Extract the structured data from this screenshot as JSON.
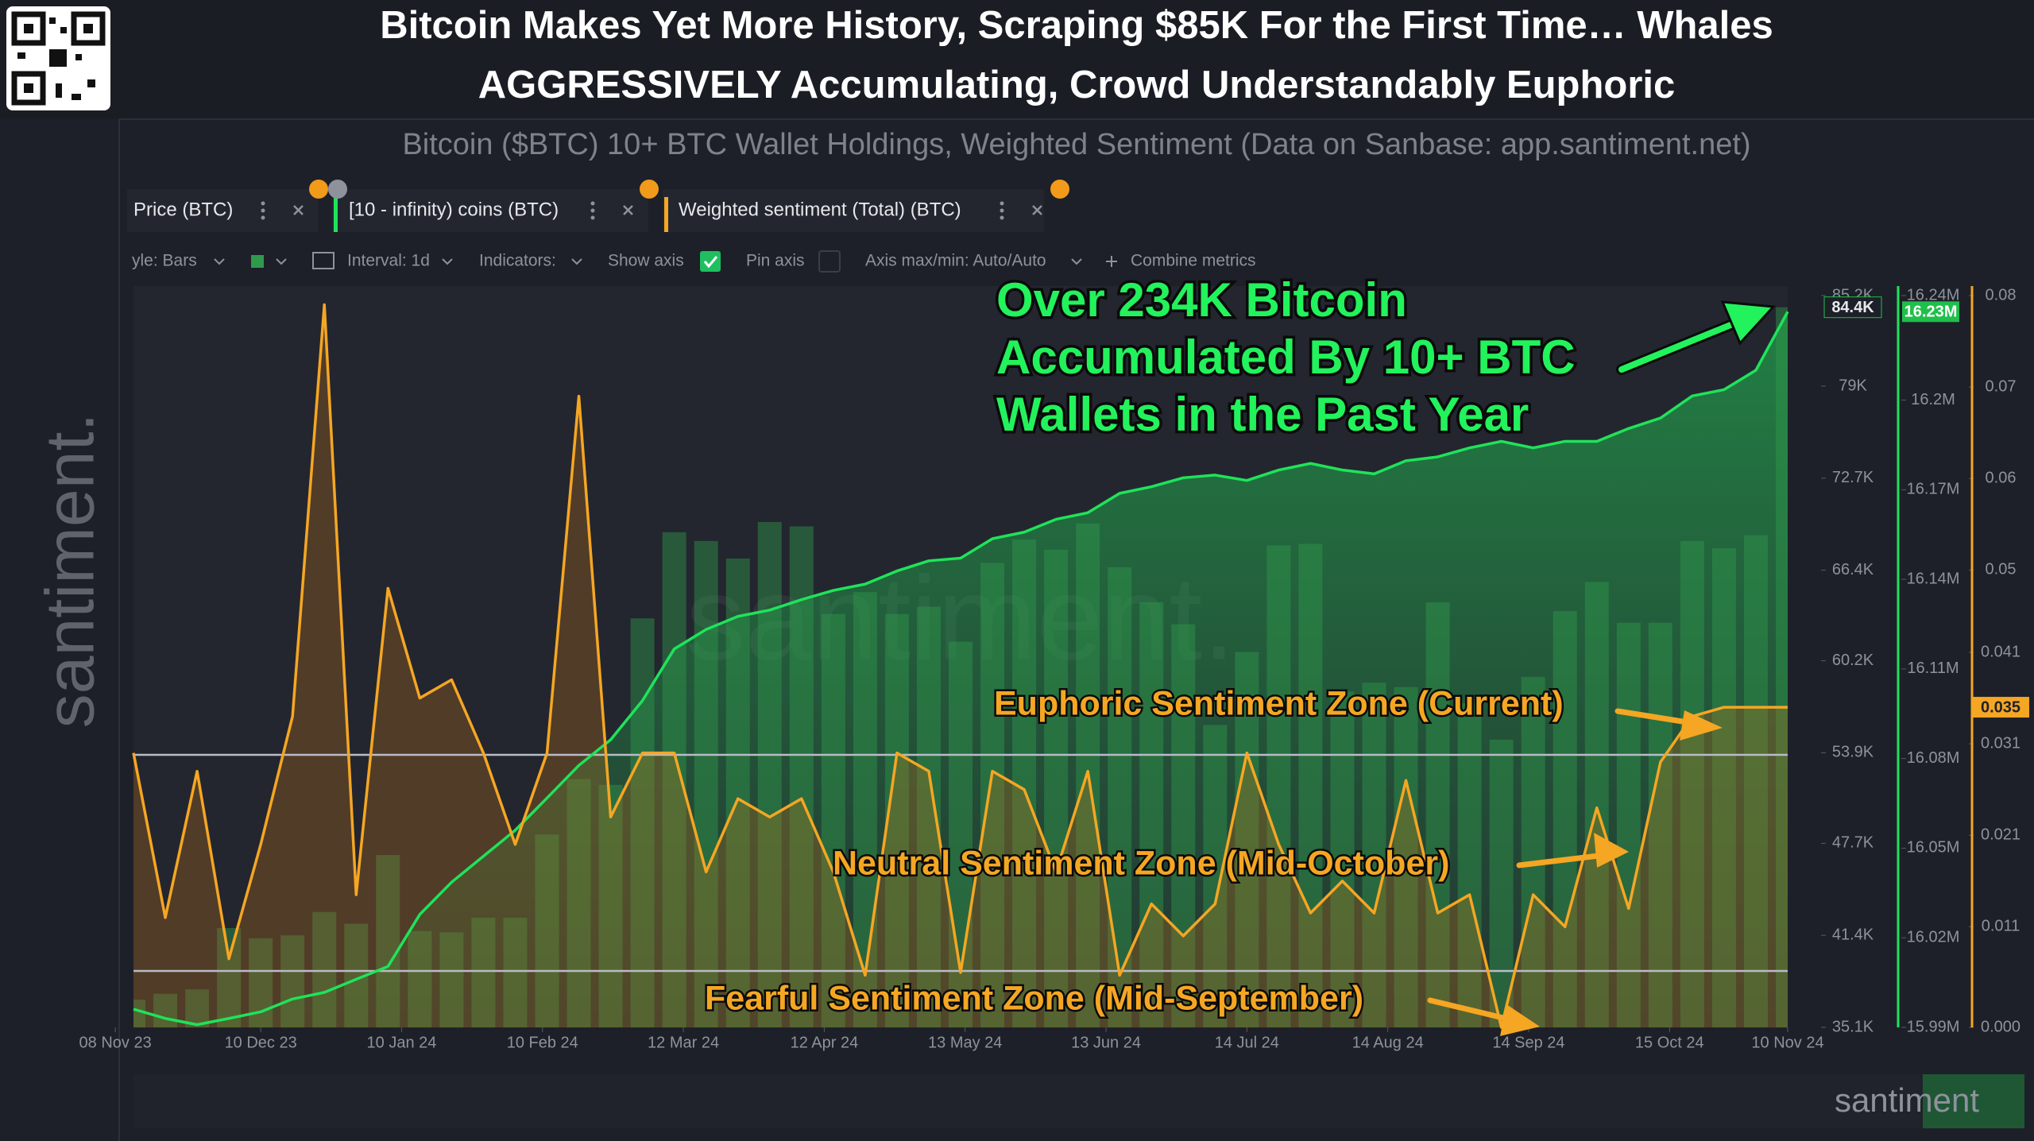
{
  "header": {
    "title_lines": [
      "Bitcoin Makes Yet More History, Scraping $85K For the First Time… Whales",
      "AGGRESSIVELY Accumulating, Crowd Understandably Euphoric"
    ]
  },
  "branding": {
    "sidebar": "santiment.",
    "watermark": "santiment.",
    "navigator": "santiment"
  },
  "toolbar": {
    "items": [
      "yle: Bars",
      "Interval: 1d",
      "Indicators:",
      "Show axis",
      "Pin axis",
      "Axis max/min: Auto/Auto",
      "Combine metrics"
    ]
  },
  "chart_data": {
    "type": "combo",
    "subtitle": "Bitcoin ($BTC) 10+ BTC Wallet Holdings, Weighted Sentiment (Data on Sanbase: app.santiment.net)",
    "x": [
      "2023-11-12",
      "2023-11-19",
      "2023-11-26",
      "2023-12-03",
      "2023-12-10",
      "2023-12-17",
      "2023-12-24",
      "2023-12-31",
      "2024-01-07",
      "2024-01-14",
      "2024-01-21",
      "2024-01-28",
      "2024-02-04",
      "2024-02-11",
      "2024-02-18",
      "2024-02-25",
      "2024-03-03",
      "2024-03-10",
      "2024-03-17",
      "2024-03-24",
      "2024-03-31",
      "2024-04-07",
      "2024-04-14",
      "2024-04-21",
      "2024-04-28",
      "2024-05-05",
      "2024-05-12",
      "2024-05-19",
      "2024-05-26",
      "2024-06-02",
      "2024-06-09",
      "2024-06-16",
      "2024-06-23",
      "2024-06-30",
      "2024-07-07",
      "2024-07-14",
      "2024-07-21",
      "2024-07-28",
      "2024-08-04",
      "2024-08-11",
      "2024-08-18",
      "2024-08-25",
      "2024-09-01",
      "2024-09-08",
      "2024-09-15",
      "2024-09-22",
      "2024-09-29",
      "2024-10-06",
      "2024-10-13",
      "2024-10-20",
      "2024-10-27",
      "2024-11-03",
      "2024-11-10"
    ],
    "xlim": [
      "2023-11-12",
      "2024-11-10"
    ],
    "xticks": [
      {
        "value": "2023-11-08",
        "label": "08 Nov 23"
      },
      {
        "value": "2023-12-10",
        "label": "10 Dec 23"
      },
      {
        "value": "2024-01-10",
        "label": "10 Jan 24"
      },
      {
        "value": "2024-02-10",
        "label": "10 Feb 24"
      },
      {
        "value": "2024-03-12",
        "label": "12 Mar 24"
      },
      {
        "value": "2024-04-12",
        "label": "12 Apr 24"
      },
      {
        "value": "2024-05-13",
        "label": "13 May 24"
      },
      {
        "value": "2024-06-13",
        "label": "13 Jun 24"
      },
      {
        "value": "2024-07-14",
        "label": "14 Jul 24"
      },
      {
        "value": "2024-08-14",
        "label": "14 Aug 24"
      },
      {
        "value": "2024-09-14",
        "label": "14 Sep 24"
      },
      {
        "value": "2024-10-15",
        "label": "15 Oct 24"
      },
      {
        "value": "2024-11-10",
        "label": "10 Nov 24"
      }
    ],
    "ylim": [
      35100,
      85200
    ],
    "yticks": [
      {
        "value": 35100,
        "label": "35.1K"
      },
      {
        "value": 41400,
        "label": "41.4K"
      },
      {
        "value": 47700,
        "label": "47.7K"
      },
      {
        "value": 53900,
        "label": "53.9K"
      },
      {
        "value": 60200,
        "label": "60.2K"
      },
      {
        "value": 66400,
        "label": "66.4K"
      },
      {
        "value": 72700,
        "label": "72.7K"
      },
      {
        "value": 79000,
        "label": "79K"
      },
      {
        "value": 85200,
        "label": "85.2K"
      }
    ],
    "y2lim": [
      15990000,
      16235000
    ],
    "y2ticks": [
      {
        "value": 15990000,
        "label": "15.99M"
      },
      {
        "value": 16020000,
        "label": "16.02M"
      },
      {
        "value": 16050000,
        "label": "16.05M"
      },
      {
        "value": 16080000,
        "label": "16.08M"
      },
      {
        "value": 16110000,
        "label": "16.11M"
      },
      {
        "value": 16140000,
        "label": "16.14M"
      },
      {
        "value": 16170000,
        "label": "16.17M"
      },
      {
        "value": 16200000,
        "label": "16.2M"
      },
      {
        "value": 16235000,
        "label": "16.24M"
      }
    ],
    "y3lim": [
      0,
      0.08
    ],
    "y3ticks": [
      {
        "value": 0,
        "label": "0.000"
      },
      0.011,
      0.021,
      0.031,
      0.041,
      0.05,
      0.06,
      0.07,
      0.08
    ],
    "grid": false,
    "series": [
      {
        "name": "Price (BTC)",
        "type": "bar",
        "axis": "y",
        "color": "#2f9a4c",
        "last_label": "84.4K",
        "values": [
          37000,
          37400,
          37700,
          41900,
          41200,
          41400,
          43000,
          42200,
          46900,
          41700,
          41600,
          42600,
          42600,
          48300,
          52100,
          51700,
          63100,
          69000,
          68400,
          67200,
          69700,
          69400,
          63400,
          64900,
          63400,
          63900,
          61500,
          66900,
          68500,
          67800,
          69600,
          66600,
          64200,
          62700,
          55800,
          60800,
          68100,
          68200,
          58100,
          58700,
          58400,
          64200,
          57300,
          54800,
          59100,
          63600,
          65600,
          62800,
          62800,
          68400,
          67900,
          68800,
          84400
        ]
      },
      {
        "name": "[10 - infinity) coins (BTC)",
        "type": "line",
        "axis": "y2",
        "color": "#1fe35a",
        "last_label": "16.23M",
        "values": [
          15996100,
          15993000,
          15990900,
          15993000,
          15995200,
          15999500,
          16001700,
          16006100,
          16010400,
          16027800,
          16038600,
          16047300,
          16056000,
          16066800,
          16077700,
          16086300,
          16099400,
          16116700,
          16123200,
          16127600,
          16129700,
          16133200,
          16136300,
          16138400,
          16142800,
          16146200,
          16147100,
          16153600,
          16155800,
          16160100,
          16162300,
          16168800,
          16171000,
          16174000,
          16174900,
          16173100,
          16176600,
          16178800,
          16176600,
          16175300,
          16179700,
          16181000,
          16184000,
          16186200,
          16184000,
          16186200,
          16186200,
          16190500,
          16194000,
          16201400,
          16203500,
          16210000,
          16229600
        ]
      },
      {
        "name": "Weighted sentiment (Total) (BTC)",
        "type": "line",
        "axis": "y3",
        "color": "#f5a623",
        "values": [
          0.03,
          0.012,
          0.028,
          0.0075,
          0.02,
          0.034,
          0.079,
          0.0145,
          0.048,
          0.036,
          0.038,
          0.03,
          0.02,
          0.03,
          0.069,
          0.023,
          0.03,
          0.03,
          0.017,
          0.025,
          0.023,
          0.025,
          0.017,
          0.0057,
          0.03,
          0.028,
          0.006,
          0.028,
          0.026,
          0.017,
          0.028,
          0.0057,
          0.0135,
          0.01,
          0.0135,
          0.03,
          0.02,
          0.0125,
          0.016,
          0.0125,
          0.027,
          0.0125,
          0.0145,
          0,
          0.0145,
          0.011,
          0.024,
          0.013,
          0.029,
          0.034,
          0.035,
          0.035,
          0.035
        ]
      }
    ],
    "annotations": [
      {
        "lines": [
          "Over 234K Bitcoin",
          "Accumulated By 10+ BTC",
          "Wallets in the Past Year"
        ],
        "color": "#22f25c"
      },
      {
        "lines": [
          "Euphoric Sentiment Zone (Current)"
        ],
        "color": "#f5a623"
      },
      {
        "lines": [
          "Neutral Sentiment Zone (Mid-October)"
        ],
        "color": "#f5a623"
      },
      {
        "lines": [
          "Fearful Sentiment Zone (Mid-September)"
        ],
        "color": "#f5a623"
      }
    ]
  }
}
